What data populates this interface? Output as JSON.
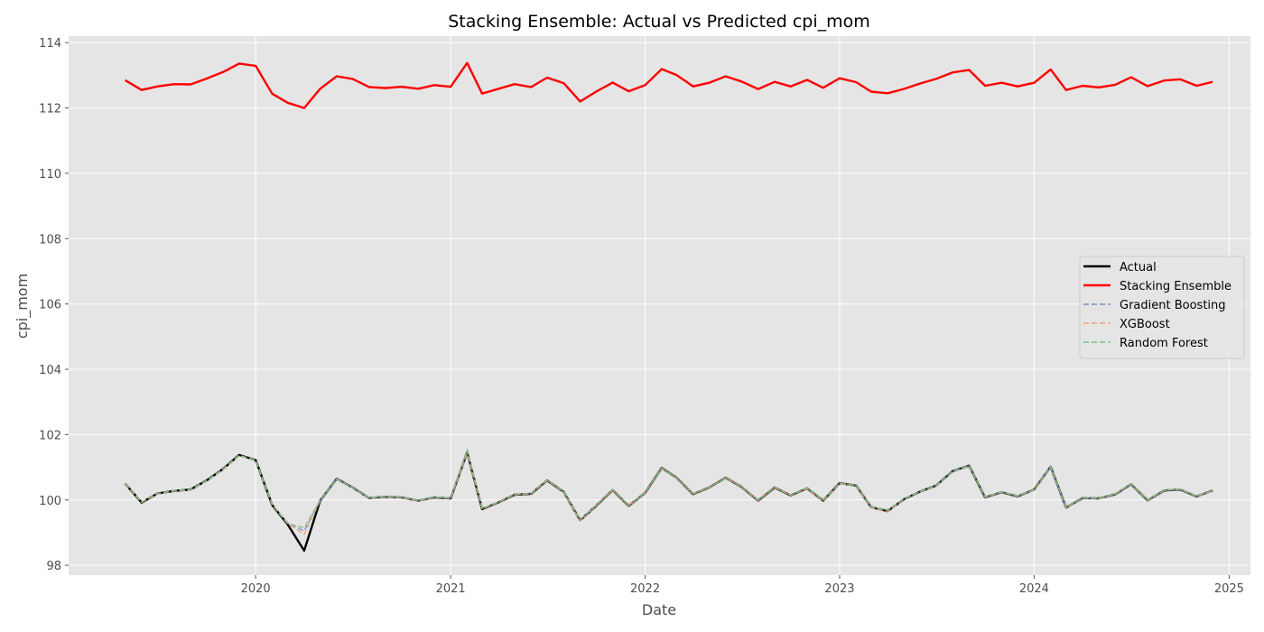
{
  "chart_data": {
    "type": "line",
    "title": "Stacking Ensemble: Actual vs Predicted cpi_mom",
    "xlabel": "Date",
    "ylabel": "cpi_mom",
    "x_axis": {
      "type": "date",
      "range": [
        "2019-01-15",
        "2025-02-10"
      ],
      "ticks": [
        "2020",
        "2021",
        "2022",
        "2023",
        "2024",
        "2025"
      ]
    },
    "y_axis": {
      "range": [
        97.7,
        114.2
      ],
      "ticks": [
        "98",
        "100",
        "102",
        "104",
        "106",
        "108",
        "110",
        "112",
        "114"
      ]
    },
    "grid": true,
    "legend": {
      "position": "center-right"
    },
    "x": [
      "2019-05",
      "2019-06",
      "2019-07",
      "2019-08",
      "2019-09",
      "2019-10",
      "2019-11",
      "2019-12",
      "2020-01",
      "2020-02",
      "2020-03",
      "2020-04",
      "2020-05",
      "2020-06",
      "2020-07",
      "2020-08",
      "2020-09",
      "2020-10",
      "2020-11",
      "2020-12",
      "2021-01",
      "2021-02",
      "2021-03",
      "2021-04",
      "2021-05",
      "2021-06",
      "2021-07",
      "2021-08",
      "2021-09",
      "2021-10",
      "2021-11",
      "2021-12",
      "2022-01",
      "2022-02",
      "2022-03",
      "2022-04",
      "2022-05",
      "2022-06",
      "2022-07",
      "2022-08",
      "2022-09",
      "2022-10",
      "2022-11",
      "2022-12",
      "2023-01",
      "2023-02",
      "2023-03",
      "2023-04",
      "2023-05",
      "2023-06",
      "2023-07",
      "2023-08",
      "2023-09",
      "2023-10",
      "2023-11",
      "2023-12",
      "2024-01",
      "2024-02",
      "2024-03",
      "2024-04",
      "2024-05",
      "2024-06",
      "2024-07",
      "2024-08",
      "2024-09",
      "2024-10",
      "2024-11",
      "2024-12"
    ],
    "series": [
      {
        "name": "Actual",
        "color": "#000000",
        "dashed": false,
        "values": [
          100.5,
          99.92,
          100.2,
          100.28,
          100.32,
          100.6,
          100.95,
          101.38,
          101.22,
          99.85,
          99.25,
          98.45,
          99.98,
          100.65,
          100.38,
          100.06,
          100.1,
          100.08,
          99.98,
          100.08,
          100.05,
          101.45,
          99.72,
          99.93,
          100.16,
          100.19,
          100.6,
          100.25,
          99.38,
          99.82,
          100.3,
          99.82,
          100.22,
          100.98,
          100.68,
          100.18,
          100.38,
          100.68,
          100.4,
          99.98,
          100.38,
          100.14,
          100.36,
          99.98,
          100.52,
          100.44,
          99.78,
          99.66,
          100.02,
          100.26,
          100.44,
          100.88,
          101.05,
          100.08,
          100.24,
          100.11,
          100.32,
          101.02,
          99.77,
          100.06,
          100.05,
          100.17,
          100.48,
          99.99,
          100.29,
          100.32,
          100.11,
          100.29
        ]
      },
      {
        "name": "Stacking Ensemble",
        "color": "#ff0000",
        "dashed": false,
        "values": [
          112.85,
          112.55,
          112.66,
          112.73,
          112.72,
          112.9,
          113.1,
          113.36,
          113.29,
          112.44,
          112.16,
          112.0,
          112.59,
          112.97,
          112.89,
          112.64,
          112.61,
          112.65,
          112.59,
          112.7,
          112.65,
          113.38,
          112.44,
          112.59,
          112.73,
          112.64,
          112.93,
          112.76,
          112.2,
          112.5,
          112.78,
          112.51,
          112.7,
          113.19,
          113.01,
          112.66,
          112.77,
          112.97,
          112.81,
          112.58,
          112.8,
          112.66,
          112.86,
          112.62,
          112.91,
          112.79,
          112.5,
          112.45,
          112.58,
          112.75,
          112.89,
          113.09,
          113.16,
          112.68,
          112.77,
          112.66,
          112.77,
          113.18,
          112.55,
          112.68,
          112.63,
          112.71,
          112.94,
          112.67,
          112.84,
          112.88,
          112.68,
          112.8
        ]
      },
      {
        "name": "Gradient Boosting",
        "color": "#7590c4",
        "dashed": true,
        "values": [
          100.5,
          99.93,
          100.19,
          100.28,
          100.32,
          100.58,
          100.94,
          101.36,
          101.2,
          99.86,
          99.3,
          99.05,
          99.98,
          100.64,
          100.38,
          100.07,
          100.11,
          100.08,
          99.99,
          100.08,
          100.06,
          101.5,
          99.74,
          99.94,
          100.16,
          100.2,
          100.6,
          100.26,
          99.4,
          99.83,
          100.3,
          99.83,
          100.22,
          100.97,
          100.67,
          100.19,
          100.38,
          100.67,
          100.4,
          99.99,
          100.38,
          100.15,
          100.36,
          99.99,
          100.51,
          100.44,
          99.79,
          99.68,
          100.03,
          100.26,
          100.44,
          100.87,
          101.04,
          100.09,
          100.24,
          100.12,
          100.32,
          101.0,
          99.78,
          100.07,
          100.05,
          100.18,
          100.48,
          100.0,
          100.29,
          100.32,
          100.12,
          100.29
        ]
      },
      {
        "name": "XGBoost",
        "color": "#eea07c",
        "dashed": true,
        "values": [
          100.49,
          99.93,
          100.2,
          100.28,
          100.31,
          100.6,
          100.94,
          101.36,
          101.22,
          99.86,
          99.28,
          98.95,
          99.98,
          100.65,
          100.38,
          100.05,
          100.1,
          100.07,
          99.97,
          100.08,
          100.05,
          101.42,
          99.73,
          99.93,
          100.16,
          100.19,
          100.61,
          100.24,
          99.36,
          99.82,
          100.3,
          99.82,
          100.22,
          100.98,
          100.68,
          100.18,
          100.38,
          100.68,
          100.4,
          99.98,
          100.39,
          100.14,
          100.36,
          99.97,
          100.52,
          100.43,
          99.77,
          99.63,
          100.02,
          100.26,
          100.43,
          100.88,
          101.05,
          100.08,
          100.24,
          100.11,
          100.31,
          101.02,
          99.76,
          100.06,
          100.04,
          100.17,
          100.48,
          99.99,
          100.29,
          100.33,
          100.11,
          100.28
        ]
      },
      {
        "name": "Random Forest",
        "color": "#7fc27f",
        "dashed": true,
        "values": [
          100.51,
          99.94,
          100.19,
          100.29,
          100.32,
          100.59,
          100.95,
          101.37,
          101.21,
          99.87,
          99.27,
          99.15,
          99.99,
          100.64,
          100.37,
          100.07,
          100.11,
          100.09,
          99.99,
          100.09,
          100.06,
          101.55,
          99.74,
          99.94,
          100.17,
          100.2,
          100.6,
          100.26,
          99.4,
          99.83,
          100.31,
          99.83,
          100.23,
          100.98,
          100.67,
          100.19,
          100.38,
          100.68,
          100.41,
          99.99,
          100.38,
          100.15,
          100.37,
          99.99,
          100.52,
          100.44,
          99.79,
          99.7,
          100.03,
          100.27,
          100.44,
          100.88,
          101.05,
          100.09,
          100.25,
          100.12,
          100.32,
          101.03,
          99.78,
          100.07,
          100.06,
          100.18,
          100.49,
          100.0,
          100.3,
          100.33,
          100.12,
          100.3
        ]
      }
    ]
  }
}
